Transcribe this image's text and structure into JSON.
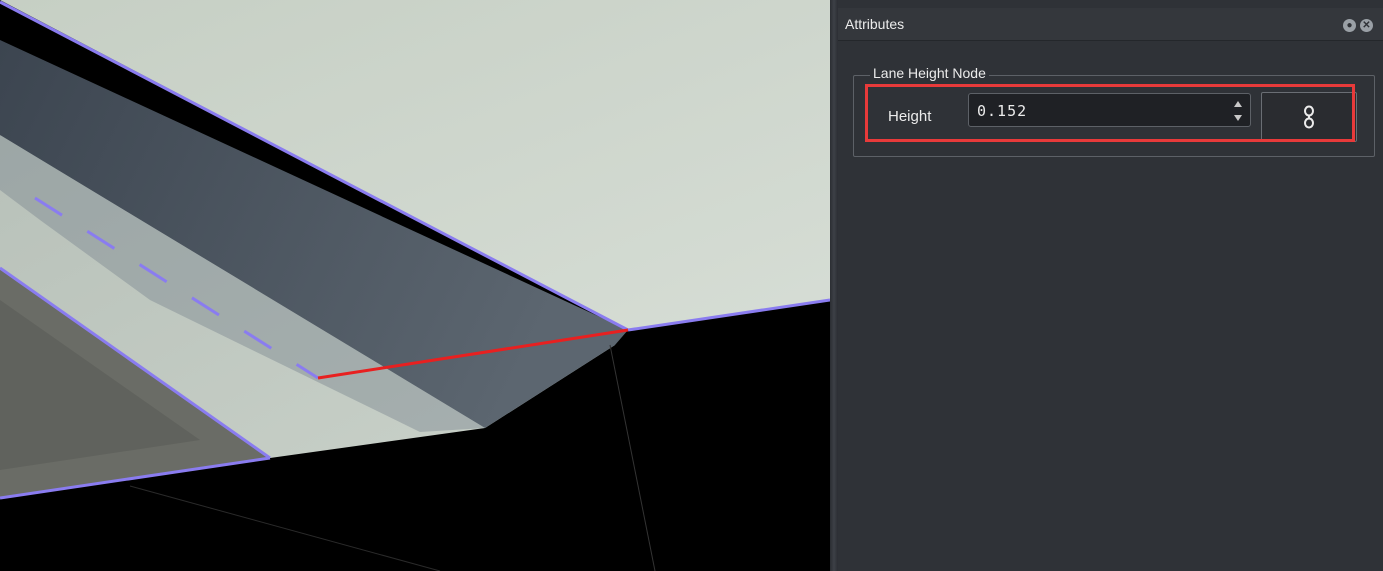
{
  "window": {
    "panel_title": "Attributes",
    "float_icon": "float-icon",
    "close_icon": "close-icon"
  },
  "attributes": {
    "group_title": "Lane Height Node",
    "height_label": "Height",
    "height_value": "0.152",
    "link_icon": "chain-link-icon"
  },
  "colors": {
    "highlight": "#e83a3a",
    "lane_line": "#8a7cf0",
    "selected_edge": "#e82020",
    "panel_bg": "#2f3237"
  },
  "viewport": {
    "content": "3D road scene: curb lane with dashed lane markings"
  }
}
